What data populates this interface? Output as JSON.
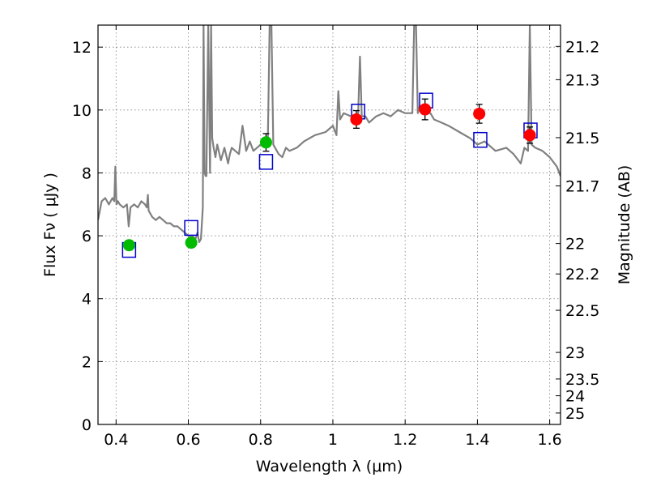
{
  "chart_data": {
    "type": "line",
    "title": "",
    "xlabel": "Wavelength  λ (μm)",
    "ylabel": "Flux  Fν  ( μJy )",
    "y2label": "Magnitude (AB)",
    "xlim": [
      0.35,
      1.63
    ],
    "ylim": [
      0,
      12.7
    ],
    "grid": true,
    "legend": "none",
    "x_ticks": [
      {
        "value": 0.4,
        "label": "0.4"
      },
      {
        "value": 0.6,
        "label": "0.6"
      },
      {
        "value": 0.8,
        "label": "0.8"
      },
      {
        "value": 1.0,
        "label": "1"
      },
      {
        "value": 1.2,
        "label": "1.2"
      },
      {
        "value": 1.4,
        "label": "1.4"
      },
      {
        "value": 1.6,
        "label": "1.6"
      }
    ],
    "y_ticks": [
      {
        "value": 0,
        "label": "0"
      },
      {
        "value": 2,
        "label": "2"
      },
      {
        "value": 4,
        "label": "4"
      },
      {
        "value": 6,
        "label": "6"
      },
      {
        "value": 8,
        "label": "8"
      },
      {
        "value": 10,
        "label": "10"
      },
      {
        "value": 12,
        "label": "12"
      }
    ],
    "y2_ticks": [
      {
        "value": 21.2,
        "label": "21.2"
      },
      {
        "value": 21.3,
        "label": "21.3"
      },
      {
        "value": 21.5,
        "label": "21.5"
      },
      {
        "value": 21.7,
        "label": "21.7"
      },
      {
        "value": 22,
        "label": "22"
      },
      {
        "value": 22.2,
        "label": "22.2"
      },
      {
        "value": 22.5,
        "label": "22.5"
      },
      {
        "value": 23,
        "label": "23"
      },
      {
        "value": 23.5,
        "label": "23.5"
      },
      {
        "value": 24,
        "label": "24"
      },
      {
        "value": 25,
        "label": "25"
      }
    ],
    "colors": {
      "model": "#808080",
      "optical_points": "#00bb00",
      "nir_points": "#ff0000",
      "model_boxes": "#0000cc",
      "grid": "#808080"
    },
    "model_spectrum": {
      "x": [
        0.35,
        0.36,
        0.37,
        0.38,
        0.39,
        0.395,
        0.398,
        0.401,
        0.405,
        0.41,
        0.42,
        0.43,
        0.435,
        0.44,
        0.45,
        0.46,
        0.47,
        0.48,
        0.485,
        0.488,
        0.49,
        0.5,
        0.51,
        0.52,
        0.53,
        0.54,
        0.55,
        0.56,
        0.57,
        0.58,
        0.59,
        0.6,
        0.61,
        0.62,
        0.625,
        0.63,
        0.635,
        0.64,
        0.642,
        0.645,
        0.648,
        0.65,
        0.655,
        0.66,
        0.663,
        0.666,
        0.67,
        0.675,
        0.68,
        0.69,
        0.7,
        0.71,
        0.715,
        0.72,
        0.73,
        0.74,
        0.75,
        0.76,
        0.77,
        0.78,
        0.79,
        0.8,
        0.81,
        0.82,
        0.825,
        0.83,
        0.835,
        0.84,
        0.85,
        0.86,
        0.87,
        0.88,
        0.9,
        0.92,
        0.95,
        0.98,
        1.0,
        1.01,
        1.015,
        1.02,
        1.03,
        1.05,
        1.06,
        1.07,
        1.075,
        1.08,
        1.09,
        1.1,
        1.12,
        1.14,
        1.16,
        1.18,
        1.2,
        1.22,
        1.225,
        1.23,
        1.235,
        1.24,
        1.25,
        1.26,
        1.27,
        1.28,
        1.3,
        1.32,
        1.35,
        1.38,
        1.4,
        1.42,
        1.45,
        1.48,
        1.5,
        1.52,
        1.53,
        1.54,
        1.545,
        1.55,
        1.56,
        1.58,
        1.6,
        1.62,
        1.63
      ],
      "y": [
        6.5,
        7.1,
        7.2,
        7.0,
        7.2,
        7.1,
        8.2,
        7.0,
        7.1,
        7.0,
        6.9,
        7.0,
        6.3,
        6.9,
        7.0,
        6.9,
        7.1,
        7.0,
        6.9,
        7.3,
        6.8,
        6.6,
        6.5,
        6.6,
        6.5,
        6.4,
        6.4,
        6.3,
        6.3,
        6.2,
        6.1,
        6.0,
        6.0,
        5.9,
        6.1,
        5.8,
        5.9,
        6.9,
        12.7,
        8.0,
        7.9,
        7.9,
        12.7,
        8.0,
        12.7,
        9.1,
        8.8,
        8.5,
        8.9,
        8.4,
        8.8,
        8.3,
        8.6,
        8.8,
        8.7,
        8.6,
        9.5,
        8.7,
        9.0,
        8.7,
        8.8,
        8.9,
        8.9,
        9.1,
        12.7,
        12.7,
        8.9,
        8.8,
        8.6,
        8.5,
        8.8,
        8.7,
        8.8,
        9.0,
        9.2,
        9.3,
        9.5,
        9.2,
        10.6,
        9.7,
        9.9,
        9.8,
        9.7,
        9.9,
        11.7,
        9.8,
        9.8,
        9.6,
        9.8,
        9.9,
        9.8,
        10.0,
        9.9,
        9.9,
        12.7,
        12.7,
        9.9,
        10.1,
        9.9,
        9.9,
        9.9,
        9.7,
        9.6,
        9.5,
        9.3,
        9.1,
        8.9,
        9.0,
        8.7,
        8.8,
        8.6,
        8.3,
        8.8,
        8.7,
        12.7,
        8.9,
        8.8,
        8.7,
        8.5,
        8.2,
        7.9
      ]
    },
    "model_boxes": {
      "x": [
        0.436,
        0.608,
        0.815,
        1.07,
        1.258,
        1.408,
        1.547
      ],
      "y": [
        5.55,
        6.25,
        8.35,
        9.95,
        10.3,
        9.05,
        9.35
      ]
    },
    "optical_points": {
      "x": [
        0.436,
        0.608,
        0.815
      ],
      "y": [
        5.7,
        5.78,
        8.97
      ],
      "err": [
        0.15,
        0.1,
        0.28
      ]
    },
    "nir_points": {
      "x": [
        1.065,
        1.255,
        1.405,
        1.545
      ],
      "y": [
        9.7,
        10.02,
        9.88,
        9.2
      ],
      "err": [
        0.28,
        0.33,
        0.3,
        0.26
      ]
    }
  }
}
